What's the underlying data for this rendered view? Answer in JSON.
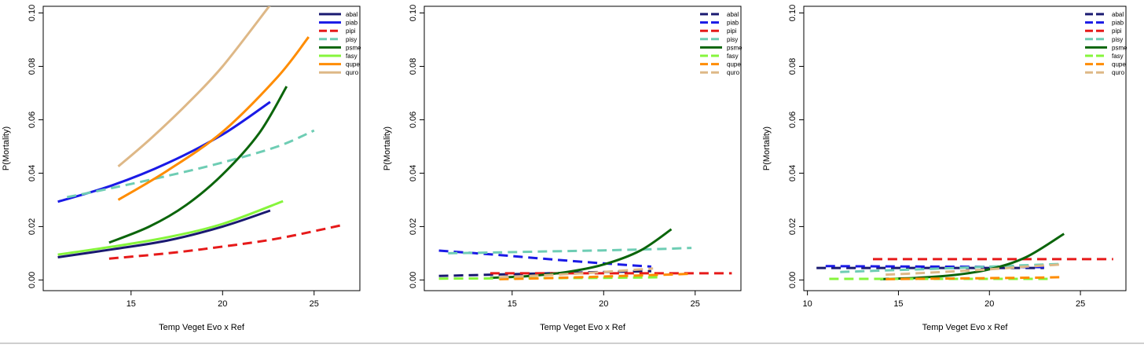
{
  "chart_data": [
    {
      "type": "line",
      "xlabel": "Temp Veget Evo x Ref",
      "ylabel": "P(Mortality)",
      "xlim": [
        10.2,
        27.5
      ],
      "ylim": [
        -0.004,
        0.1025
      ],
      "xticks": [
        15,
        20,
        25
      ],
      "yticks": [
        0.0,
        0.02,
        0.04,
        0.06,
        0.08,
        0.1
      ],
      "ytick_labels": [
        "0.00",
        "0.02",
        "0.04",
        "0.06",
        "0.08",
        "0.10"
      ],
      "legend_position": "top-right",
      "series": [
        {
          "name": "abal",
          "color": "#191970",
          "dash": "solid",
          "x": [
            11.0,
            14.0,
            17.0,
            20.0,
            22.6
          ],
          "y": [
            0.0085,
            0.0115,
            0.0148,
            0.02,
            0.026
          ]
        },
        {
          "name": "piab",
          "color": "#1a1ae6",
          "dash": "solid",
          "x": [
            11.0,
            14.0,
            17.0,
            20.0,
            22.6
          ],
          "y": [
            0.0293,
            0.0355,
            0.0438,
            0.0545,
            0.0667
          ]
        },
        {
          "name": "pipi",
          "color": "#e61a1a",
          "dash": "dashed",
          "x": [
            13.8,
            17.0,
            20.0,
            23.0,
            26.5
          ],
          "y": [
            0.008,
            0.01,
            0.0125,
            0.0155,
            0.0205
          ]
        },
        {
          "name": "pisy",
          "color": "#6ecdb4",
          "dash": "dashed",
          "x": [
            11.5,
            14.0,
            17.0,
            20.0,
            23.0,
            25.0
          ],
          "y": [
            0.031,
            0.0345,
            0.039,
            0.044,
            0.05,
            0.056
          ]
        },
        {
          "name": "psme",
          "color": "#0b650b",
          "dash": "solid",
          "x": [
            13.8,
            16.0,
            18.0,
            20.0,
            22.0,
            23.5
          ],
          "y": [
            0.014,
            0.02,
            0.028,
            0.0395,
            0.055,
            0.0725
          ]
        },
        {
          "name": "fasy",
          "color": "#86f53c",
          "dash": "solid",
          "x": [
            11.0,
            14.0,
            17.0,
            20.0,
            23.3
          ],
          "y": [
            0.0095,
            0.0125,
            0.016,
            0.021,
            0.0295
          ]
        },
        {
          "name": "qupe",
          "color": "#ff8c00",
          "dash": "solid",
          "x": [
            14.3,
            17.0,
            20.0,
            23.0,
            24.7
          ],
          "y": [
            0.03,
            0.041,
            0.0555,
            0.076,
            0.091
          ]
        },
        {
          "name": "quro",
          "color": "#deb887",
          "dash": "solid",
          "x": [
            14.3,
            16.0,
            18.0,
            20.0,
            22.6
          ],
          "y": [
            0.0425,
            0.0525,
            0.0655,
            0.08,
            0.103
          ]
        }
      ]
    },
    {
      "type": "line",
      "xlabel": "Temp Veget Evo x Ref",
      "ylabel": "P(Mortality)",
      "xlim": [
        10.2,
        27.5
      ],
      "ylim": [
        -0.004,
        0.1025
      ],
      "xticks": [
        15,
        20,
        25
      ],
      "yticks": [
        0.0,
        0.02,
        0.04,
        0.06,
        0.08,
        0.1
      ],
      "ytick_labels": [
        "0.00",
        "0.02",
        "0.04",
        "0.06",
        "0.08",
        "0.10"
      ],
      "legend_position": "top-right",
      "series": [
        {
          "name": "abal",
          "color": "#191970",
          "dash": "dashed",
          "x": [
            11.0,
            14.0,
            17.0,
            20.0,
            22.6
          ],
          "y": [
            0.0015,
            0.002,
            0.0025,
            0.003,
            0.0033
          ]
        },
        {
          "name": "piab",
          "color": "#1a1ae6",
          "dash": "dashed",
          "x": [
            11.0,
            14.0,
            17.0,
            20.0,
            22.6
          ],
          "y": [
            0.011,
            0.0095,
            0.0078,
            0.0062,
            0.005
          ]
        },
        {
          "name": "pipi",
          "color": "#e61a1a",
          "dash": "dashed",
          "x": [
            13.8,
            17.0,
            20.0,
            23.0,
            27.0
          ],
          "y": [
            0.0025,
            0.0025,
            0.0025,
            0.0025,
            0.0025
          ]
        },
        {
          "name": "pisy",
          "color": "#6ecdb4",
          "dash": "dashed",
          "x": [
            11.5,
            14.0,
            17.0,
            20.0,
            23.0,
            24.8
          ],
          "y": [
            0.01,
            0.0103,
            0.0107,
            0.0111,
            0.0116,
            0.012
          ]
        },
        {
          "name": "psme",
          "color": "#0b650b",
          "dash": "solid",
          "x": [
            13.8,
            16.0,
            18.0,
            20.0,
            22.0,
            23.7
          ],
          "y": [
            0.0008,
            0.0015,
            0.003,
            0.0058,
            0.011,
            0.019
          ]
        },
        {
          "name": "fasy",
          "color": "#86f53c",
          "dash": "dashed",
          "x": [
            11.0,
            14.0,
            17.0,
            20.0,
            23.2
          ],
          "y": [
            0.0005,
            0.0006,
            0.0007,
            0.0008,
            0.001
          ]
        },
        {
          "name": "qupe",
          "color": "#ff8c00",
          "dash": "dashed",
          "x": [
            14.3,
            17.0,
            20.0,
            23.0,
            24.7
          ],
          "y": [
            0.0003,
            0.0007,
            0.0013,
            0.0019,
            0.0023
          ]
        },
        {
          "name": "quro",
          "color": "#deb887",
          "dash": "dashed",
          "x": [
            14.3,
            16.0,
            18.0,
            20.0,
            22.7
          ],
          "y": [
            0.001,
            0.0015,
            0.0022,
            0.003,
            0.0043
          ]
        }
      ]
    },
    {
      "type": "line",
      "xlabel": "Temp Veget Evo x Ref",
      "ylabel": "P(Mortality)",
      "xlim": [
        9.8,
        27.5
      ],
      "ylim": [
        -0.004,
        0.1025
      ],
      "xticks": [
        10,
        15,
        20,
        25
      ],
      "yticks": [
        0.0,
        0.02,
        0.04,
        0.06,
        0.08,
        0.1
      ],
      "ytick_labels": [
        "0.00",
        "0.02",
        "0.04",
        "0.06",
        "0.08",
        "0.10"
      ],
      "legend_position": "top-right",
      "series": [
        {
          "name": "abal",
          "color": "#191970",
          "dash": "dashed",
          "x": [
            10.5,
            14.0,
            18.0,
            22.0,
            23.0
          ],
          "y": [
            0.0045,
            0.0045,
            0.0045,
            0.0045,
            0.0045
          ]
        },
        {
          "name": "piab",
          "color": "#1a1ae6",
          "dash": "dashed",
          "x": [
            11.0,
            14.0,
            17.0,
            20.0,
            23.2
          ],
          "y": [
            0.0052,
            0.0051,
            0.005,
            0.0049,
            0.0048
          ]
        },
        {
          "name": "pipi",
          "color": "#e61a1a",
          "dash": "dashed",
          "x": [
            13.6,
            17.0,
            20.0,
            23.0,
            26.8
          ],
          "y": [
            0.0078,
            0.0078,
            0.0078,
            0.0078,
            0.0078
          ]
        },
        {
          "name": "pisy",
          "color": "#6ecdb4",
          "dash": "dashed",
          "x": [
            11.8,
            14.0,
            17.0,
            20.0,
            23.0,
            24.0
          ],
          "y": [
            0.003,
            0.0035,
            0.0042,
            0.005,
            0.0058,
            0.006
          ]
        },
        {
          "name": "psme",
          "color": "#0b650b",
          "dash": "solid",
          "x": [
            14.0,
            16.0,
            18.0,
            20.0,
            22.0,
            24.1
          ],
          "y": [
            0.0003,
            0.0008,
            0.0018,
            0.004,
            0.0085,
            0.0173
          ]
        },
        {
          "name": "fasy",
          "color": "#86f53c",
          "dash": "dashed",
          "x": [
            11.2,
            14.0,
            17.0,
            20.0,
            23.2
          ],
          "y": [
            0.0004,
            0.0004,
            0.0004,
            0.0004,
            0.0004
          ]
        },
        {
          "name": "qupe",
          "color": "#ff8c00",
          "dash": "dashed",
          "x": [
            14.3,
            17.0,
            20.0,
            23.0,
            24.1
          ],
          "y": [
            0.0003,
            0.0005,
            0.0007,
            0.0009,
            0.0011
          ]
        },
        {
          "name": "quro",
          "color": "#deb887",
          "dash": "dashed",
          "x": [
            14.3,
            16.0,
            18.0,
            20.0,
            22.0,
            24.0
          ],
          "y": [
            0.002,
            0.0025,
            0.0032,
            0.004,
            0.005,
            0.0058
          ]
        }
      ]
    }
  ]
}
